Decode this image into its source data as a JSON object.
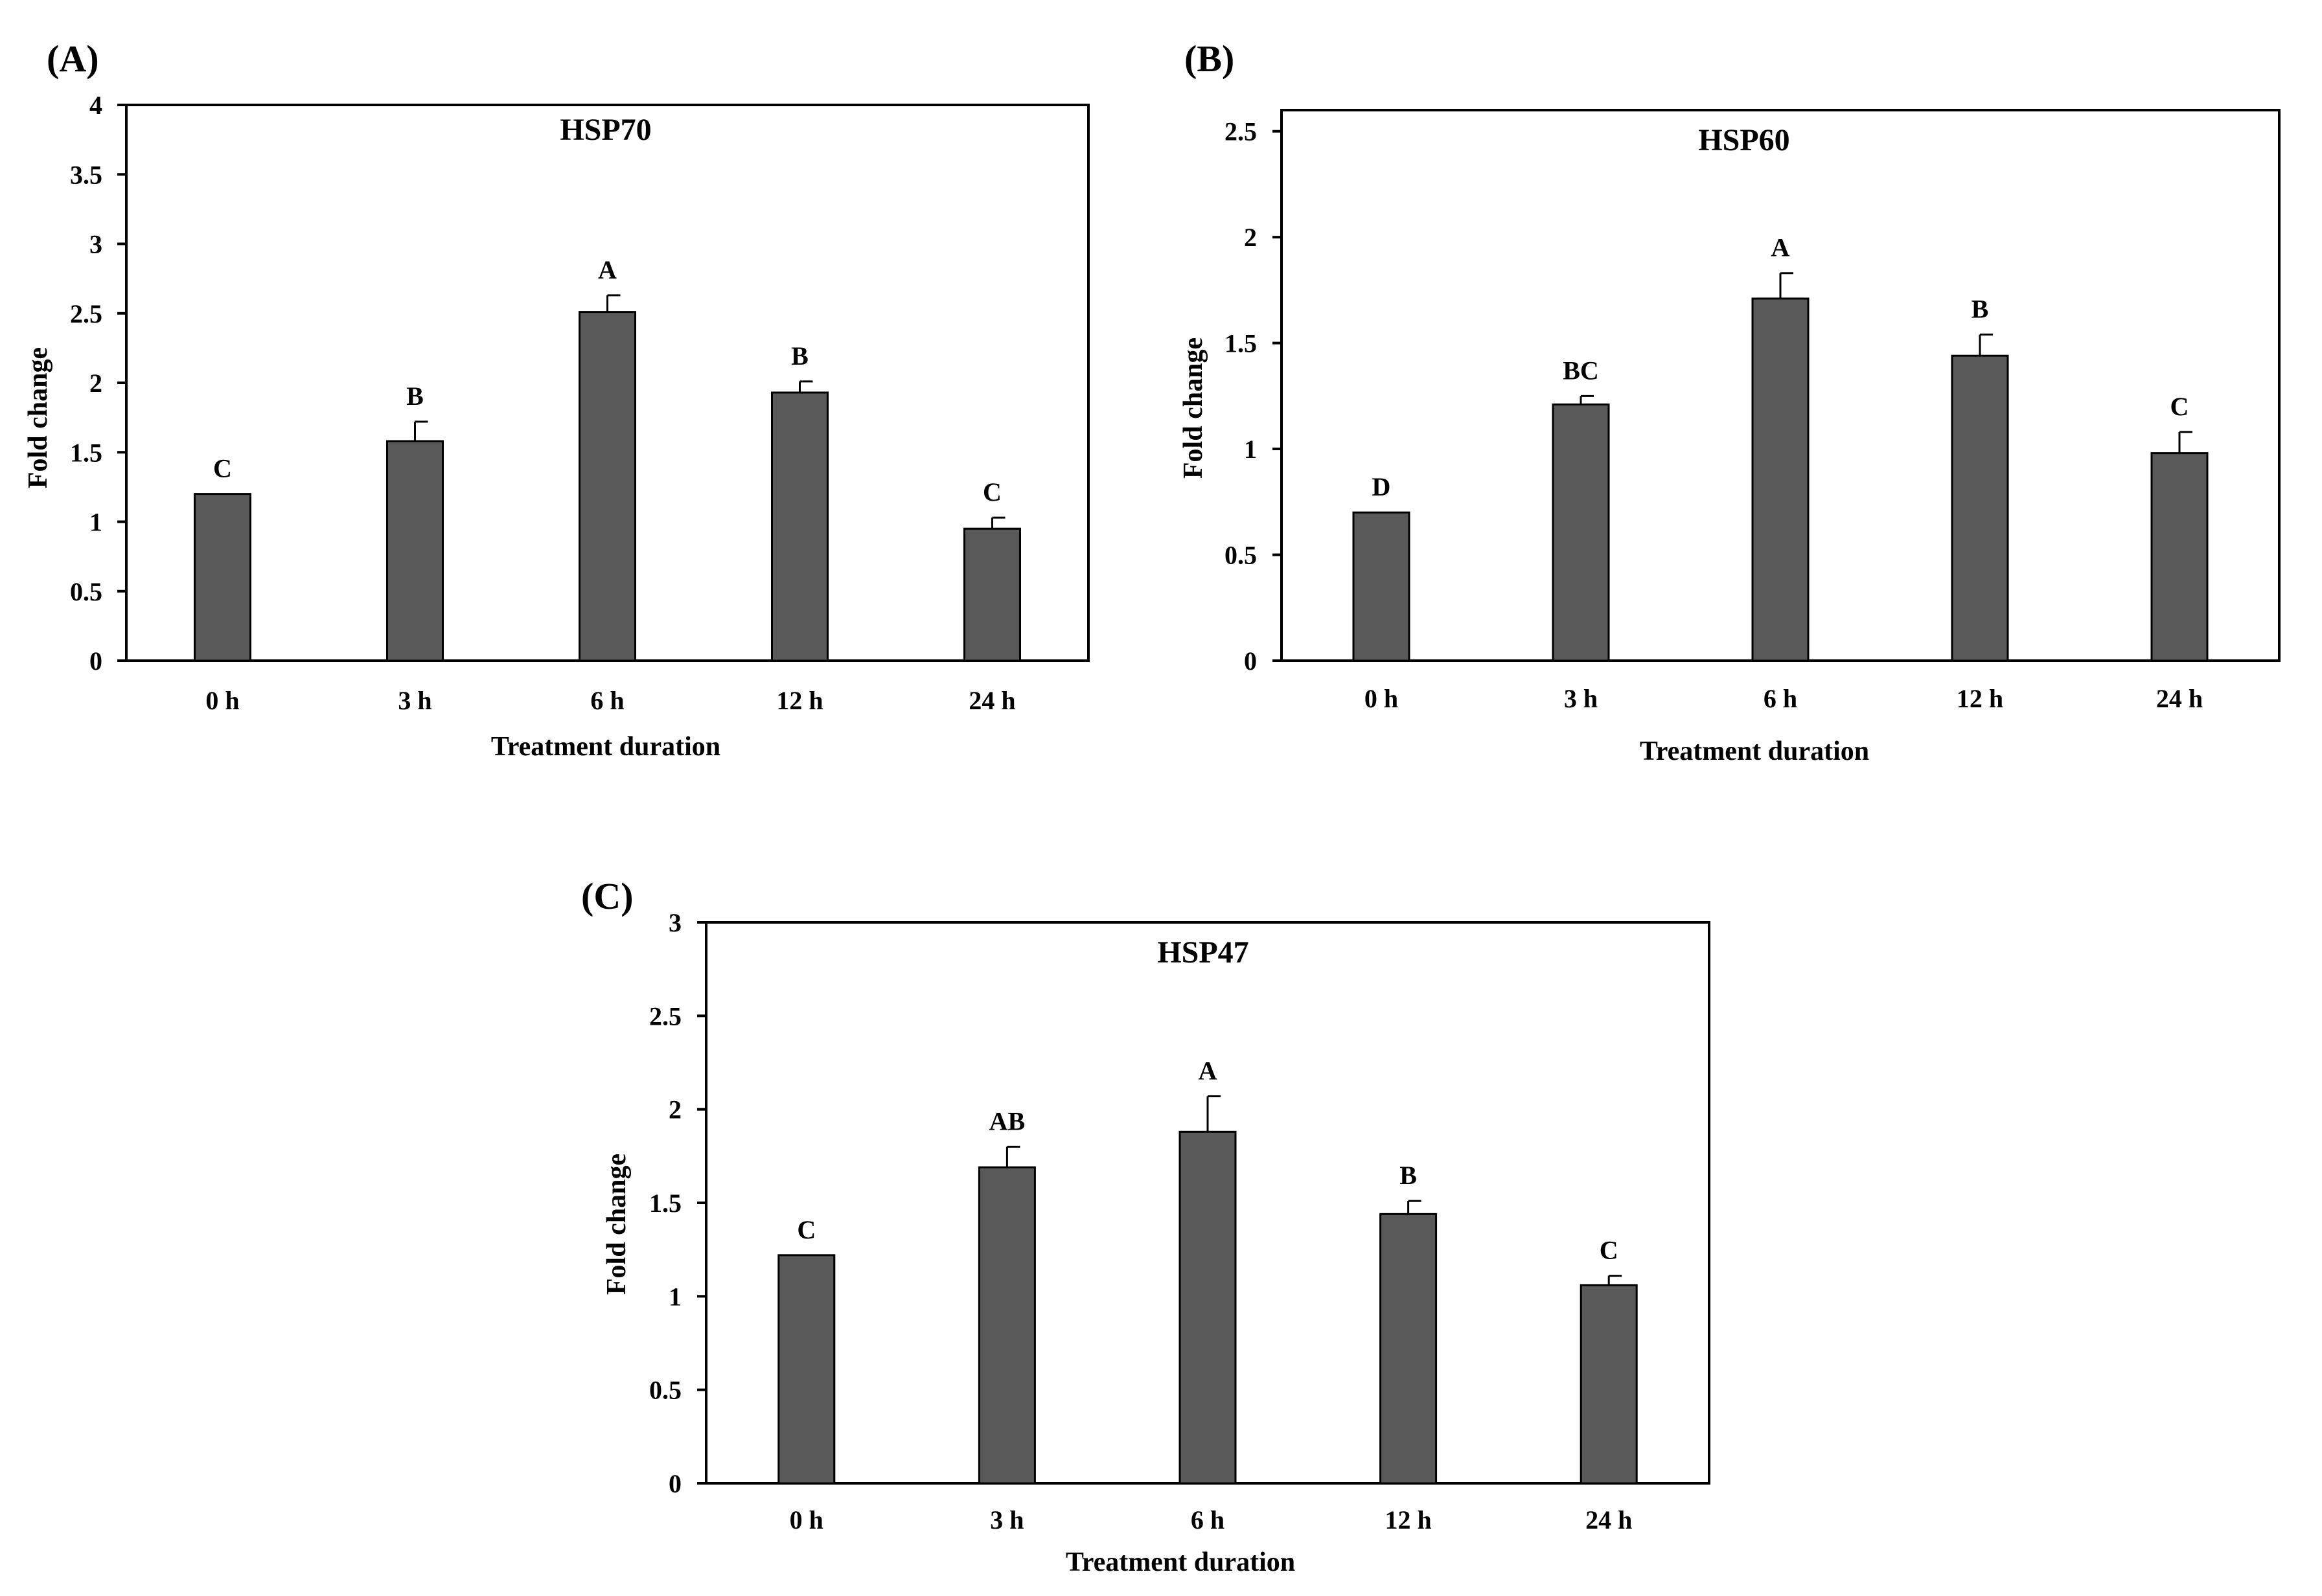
{
  "figure": {
    "background": "#ffffff",
    "bar_color": "#595959"
  },
  "chart_data": [
    {
      "type": "bar",
      "panel_label": "(A)",
      "title": "HSP70",
      "xlabel": "Treatment duration",
      "ylabel": "Fold change",
      "categories": [
        "0 h",
        "3 h",
        "6 h",
        "12 h",
        "24 h"
      ],
      "values": [
        1.2,
        1.58,
        2.51,
        1.93,
        0.95
      ],
      "errors": [
        0,
        0.14,
        0.12,
        0.08,
        0.08
      ],
      "significance": [
        "C",
        "B",
        "A",
        "B",
        "C"
      ],
      "ylim": [
        0,
        4
      ],
      "yticks": [
        0,
        0.5,
        1,
        1.5,
        2,
        2.5,
        3,
        3.5,
        4
      ],
      "ytick_labels": [
        "0",
        "0.5",
        "1",
        "1.5",
        "2",
        "2.5",
        "3",
        "3.5",
        "4"
      ],
      "grid": false
    },
    {
      "type": "bar",
      "panel_label": "(B)",
      "title": "HSP60",
      "xlabel": "Treatment duration",
      "ylabel": "Fold change",
      "categories": [
        "0 h",
        "3 h",
        "6 h",
        "12 h",
        "24 h"
      ],
      "values": [
        0.7,
        1.21,
        1.71,
        1.44,
        0.98
      ],
      "errors": [
        0,
        0.04,
        0.12,
        0.1,
        0.1
      ],
      "significance": [
        "D",
        "BC",
        "A",
        "B",
        "C"
      ],
      "ylim": [
        0,
        2.6
      ],
      "yticks": [
        0,
        0.5,
        1,
        1.5,
        2,
        2.5
      ],
      "ytick_labels": [
        "0",
        "0.5",
        "1",
        "1.5",
        "2",
        "2.5"
      ],
      "grid": false
    },
    {
      "type": "bar",
      "panel_label": "(C)",
      "title": "HSP47",
      "xlabel": "Treatment duration",
      "ylabel": "Fold change",
      "categories": [
        "0 h",
        "3 h",
        "6 h",
        "12 h",
        "24 h"
      ],
      "values": [
        1.22,
        1.69,
        1.88,
        1.44,
        1.06
      ],
      "errors": [
        0,
        0.11,
        0.19,
        0.07,
        0.05
      ],
      "significance": [
        "C",
        "AB",
        "A",
        "B",
        "C"
      ],
      "ylim": [
        0,
        3
      ],
      "yticks": [
        0,
        0.5,
        1,
        1.5,
        2,
        2.5,
        3
      ],
      "ytick_labels": [
        "0",
        "0.5",
        "1",
        "1.5",
        "2",
        "2.5",
        "3"
      ],
      "grid": false
    }
  ]
}
